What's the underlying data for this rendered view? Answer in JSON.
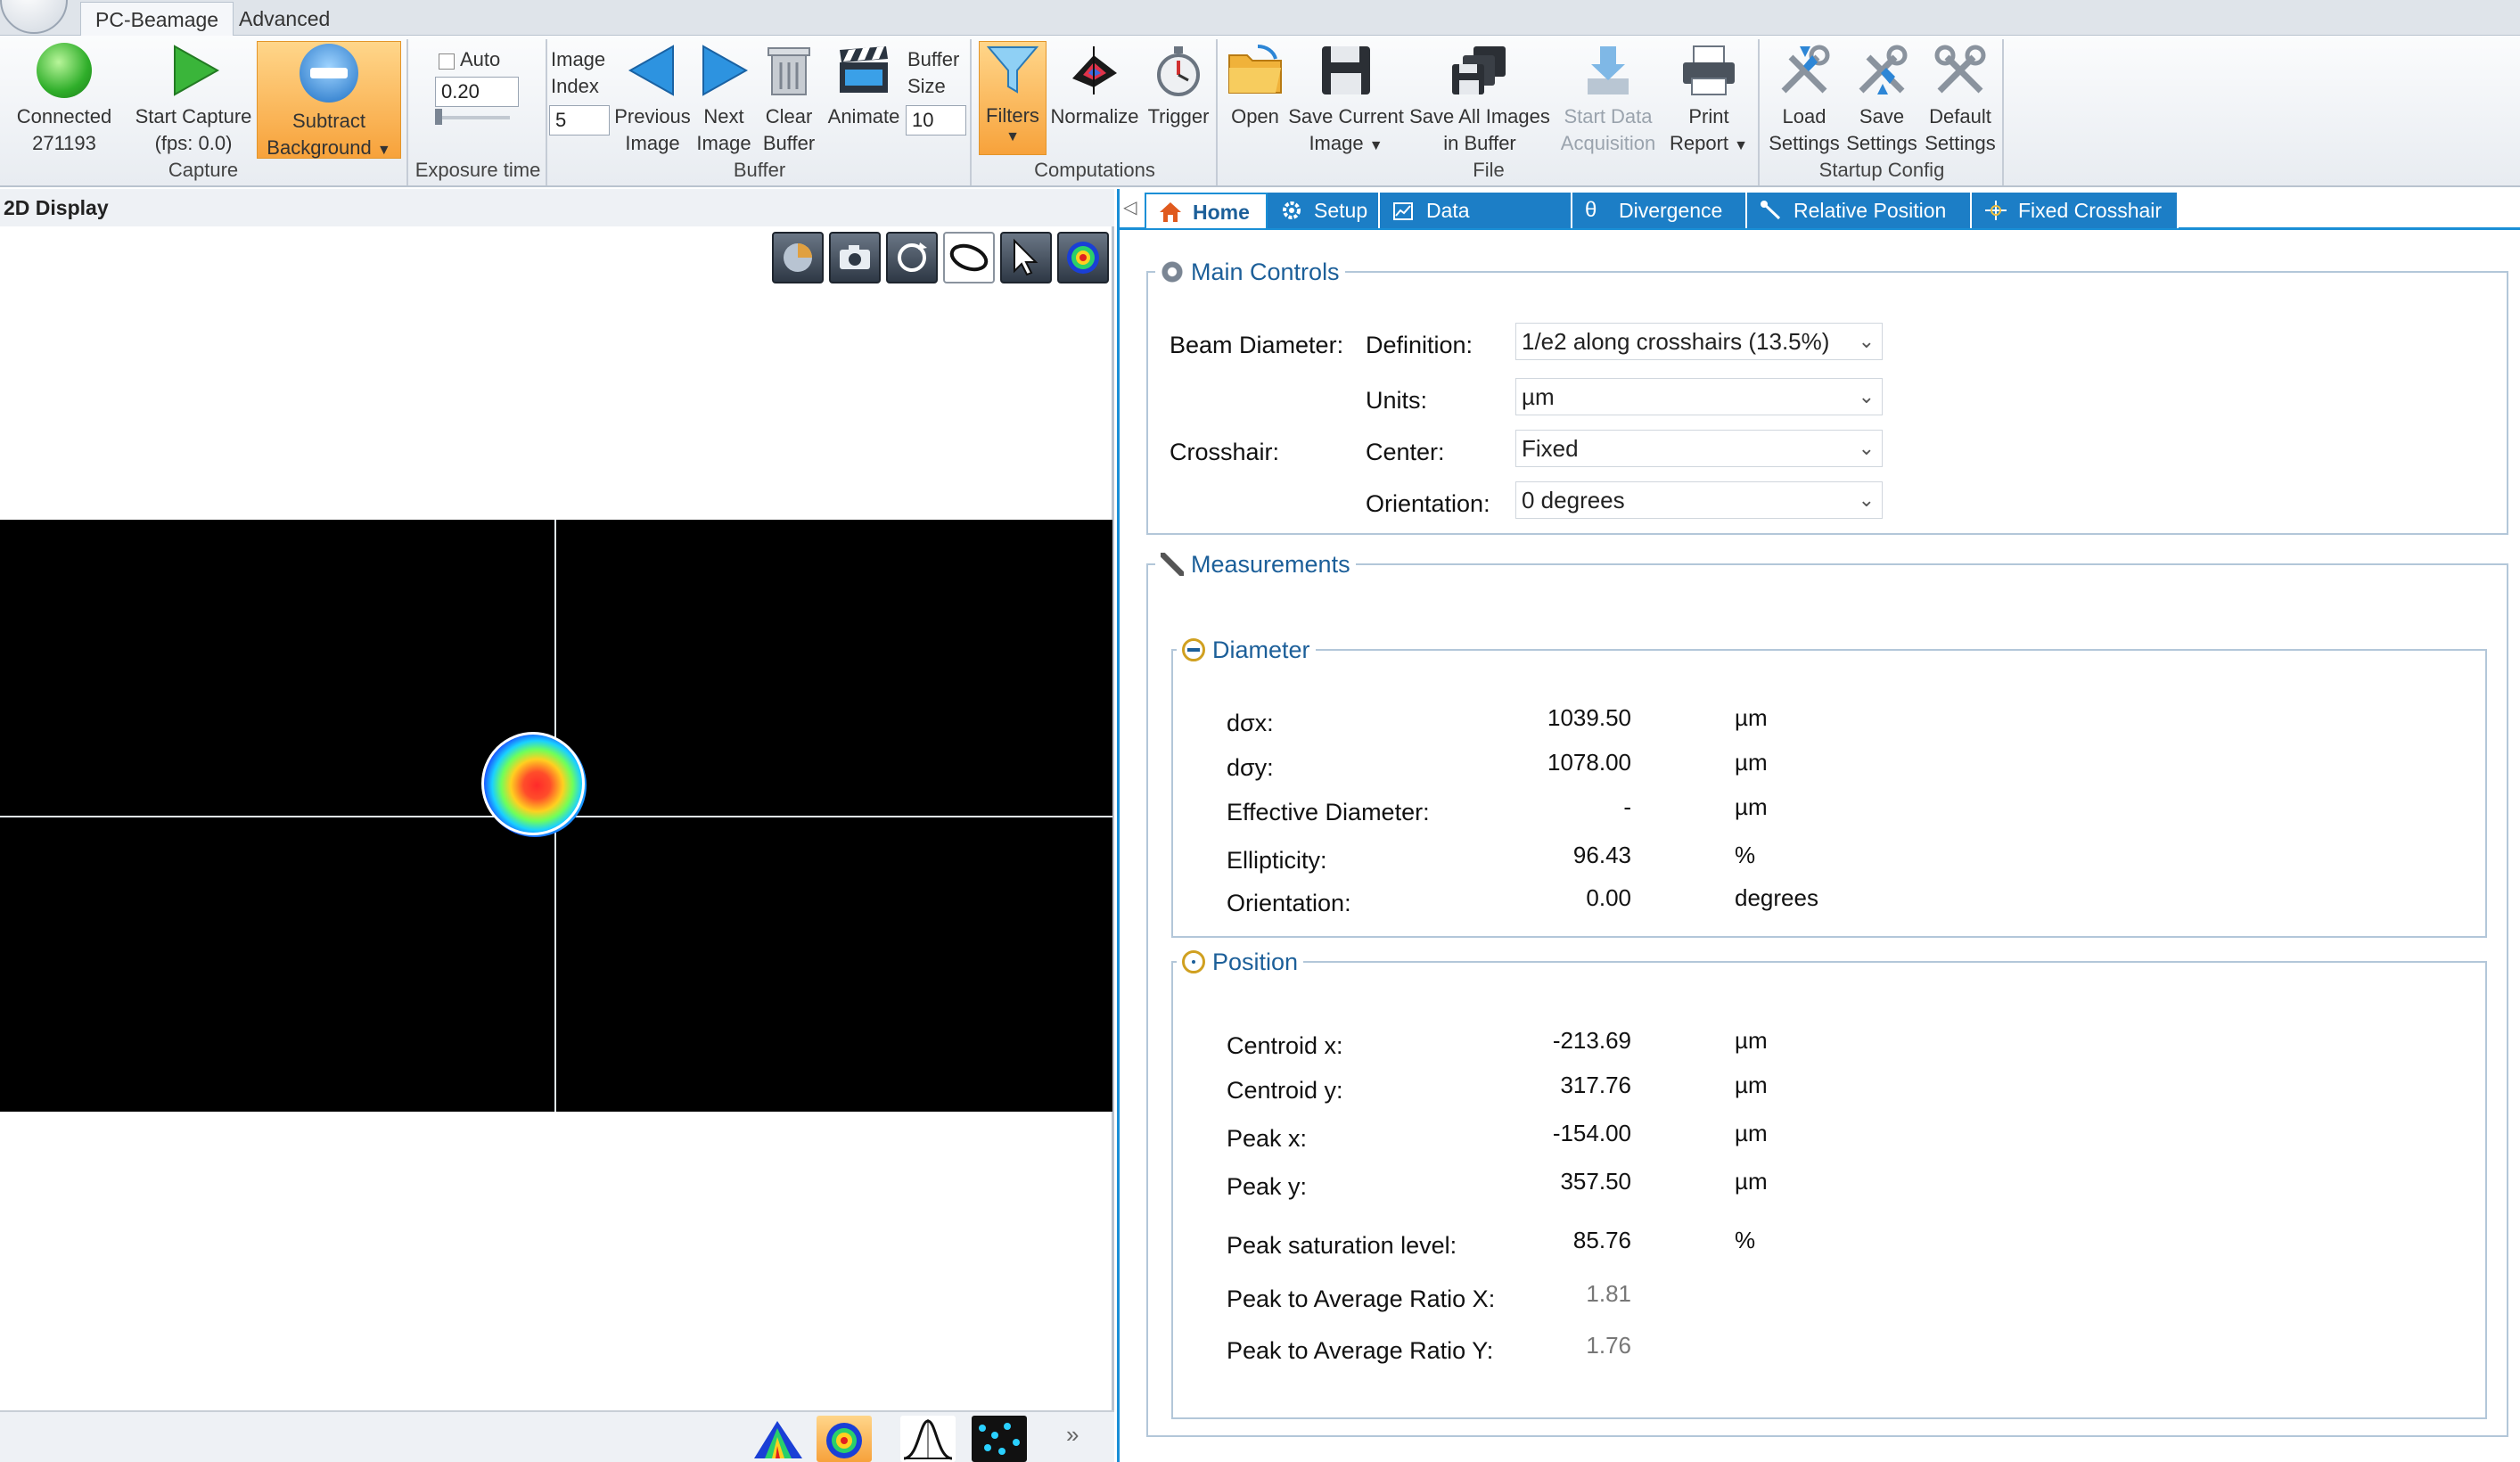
{
  "ribbon": {
    "tabs": [
      "PC-Beamage",
      "Advanced"
    ],
    "capture": {
      "group_label": "Capture",
      "connected_label": "Connected",
      "connected_id": "271193",
      "start_capture_label": "Start Capture",
      "fps_label": "(fps: 0.0)",
      "subtract_label": "Subtract",
      "background_label": "Background"
    },
    "exposure": {
      "group_label": "Exposure time",
      "auto_label": "Auto",
      "value": "0.20"
    },
    "buffer": {
      "group_label": "Buffer",
      "image_index_label1": "Image",
      "image_index_label2": "Index",
      "image_index_value": "5",
      "previous_label1": "Previous",
      "previous_label2": "Image",
      "next_label1": "Next",
      "next_label2": "Image",
      "clear_label1": "Clear",
      "clear_label2": "Buffer",
      "animate_label": "Animate",
      "buffer_size_label1": "Buffer",
      "buffer_size_label2": "Size",
      "buffer_size_value": "10"
    },
    "computations": {
      "group_label": "Computations",
      "filters_label": "Filters",
      "normalize_label": "Normalize",
      "trigger_label": "Trigger"
    },
    "file": {
      "group_label": "File",
      "open_label": "Open",
      "save_current_label1": "Save Current",
      "save_current_label2": "Image",
      "save_all_label1": "Save All Images",
      "save_all_label2": "in Buffer",
      "start_data_label1": "Start Data",
      "start_data_label2": "Acquisition",
      "print_label1": "Print",
      "print_label2": "Report"
    },
    "startup": {
      "group_label": "Startup Config",
      "load_label1": "Load",
      "load_label2": "Settings",
      "save_label1": "Save",
      "save_label2": "Settings",
      "default_label1": "Default",
      "default_label2": "Settings"
    }
  },
  "display": {
    "title": "2D Display"
  },
  "tabs": [
    "Home",
    "Setup",
    "Data Acquisition",
    "Divergence",
    "Relative Position",
    "Fixed Crosshair"
  ],
  "main_controls": {
    "title": "Main Controls",
    "beam_diameter_label": "Beam Diameter:",
    "definition_label": "Definition:",
    "definition_value": "1/e2 along crosshairs (13.5%)",
    "units_label": "Units:",
    "units_value": "µm",
    "crosshair_label": "Crosshair:",
    "center_label": "Center:",
    "center_value": "Fixed",
    "orientation_label": "Orientation:",
    "orientation_value": "0 degrees"
  },
  "measurements": {
    "title": "Measurements",
    "diameter": {
      "title": "Diameter",
      "rows": [
        {
          "label": "dσx:",
          "value": "1039.50",
          "unit": "µm"
        },
        {
          "label": "dσy:",
          "value": "1078.00",
          "unit": "µm"
        },
        {
          "label": "Effective Diameter:",
          "value": "-",
          "unit": "µm"
        },
        {
          "label": "Ellipticity:",
          "value": "96.43",
          "unit": "%"
        },
        {
          "label": "Orientation:",
          "value": "0.00",
          "unit": "degrees"
        }
      ]
    },
    "position": {
      "title": "Position",
      "rows": [
        {
          "label": "Centroid x:",
          "value": "-213.69",
          "unit": "µm"
        },
        {
          "label": "Centroid y:",
          "value": "317.76",
          "unit": "µm"
        },
        {
          "label": "Peak x:",
          "value": "-154.00",
          "unit": "µm"
        },
        {
          "label": "Peak y:",
          "value": "357.50",
          "unit": "µm"
        },
        {
          "label": "Peak saturation level:",
          "value": "85.76",
          "unit": "%"
        },
        {
          "label": "Peak to Average Ratio X:",
          "value": "1.81",
          "unit": ""
        },
        {
          "label": "Peak to Average Ratio Y:",
          "value": "1.76",
          "unit": ""
        }
      ]
    }
  }
}
